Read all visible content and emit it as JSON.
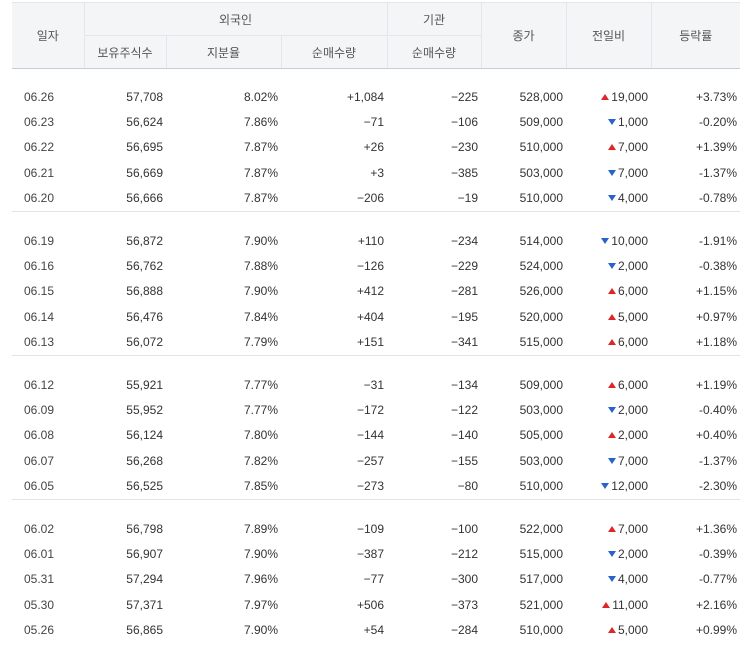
{
  "header": {
    "date": "일자",
    "foreign": "외국인",
    "institution": "기관",
    "holdings": "보유주식수",
    "share_ratio": "지분율",
    "net_foreign": "순매수량",
    "net_inst": "순매수량",
    "close": "종가",
    "change": "전일비",
    "rate": "등락률"
  },
  "colors": {
    "up": "#e0252a",
    "down": "#2a62c9"
  },
  "groups": [
    [
      {
        "date": "06.26",
        "hold": "57,708",
        "ratio": "8.02%",
        "foreign": "+1,084",
        "fdir": "up",
        "inst": "−225",
        "idir": "down",
        "close": "528,000",
        "cdir": "up",
        "change": "19,000",
        "chdir": "up",
        "rate": "+3.73%",
        "rdir": "up"
      },
      {
        "date": "06.23",
        "hold": "56,624",
        "ratio": "7.86%",
        "foreign": "−71",
        "fdir": "down",
        "inst": "−106",
        "idir": "down",
        "close": "509,000",
        "cdir": "down",
        "change": "1,000",
        "chdir": "down",
        "rate": "-0.20%",
        "rdir": "down"
      },
      {
        "date": "06.22",
        "hold": "56,695",
        "ratio": "7.87%",
        "foreign": "+26",
        "fdir": "up",
        "inst": "−230",
        "idir": "down",
        "close": "510,000",
        "cdir": "up",
        "change": "7,000",
        "chdir": "up",
        "rate": "+1.39%",
        "rdir": "up"
      },
      {
        "date": "06.21",
        "hold": "56,669",
        "ratio": "7.87%",
        "foreign": "+3",
        "fdir": "up",
        "inst": "−385",
        "idir": "down",
        "close": "503,000",
        "cdir": "down",
        "change": "7,000",
        "chdir": "down",
        "rate": "-1.37%",
        "rdir": "down"
      },
      {
        "date": "06.20",
        "hold": "56,666",
        "ratio": "7.87%",
        "foreign": "−206",
        "fdir": "down",
        "inst": "−19",
        "idir": "down",
        "close": "510,000",
        "cdir": "down",
        "change": "4,000",
        "chdir": "down",
        "rate": "-0.78%",
        "rdir": "down"
      }
    ],
    [
      {
        "date": "06.19",
        "hold": "56,872",
        "ratio": "7.90%",
        "foreign": "+110",
        "fdir": "up",
        "inst": "−234",
        "idir": "down",
        "close": "514,000",
        "cdir": "down",
        "change": "10,000",
        "chdir": "down",
        "rate": "-1.91%",
        "rdir": "down"
      },
      {
        "date": "06.16",
        "hold": "56,762",
        "ratio": "7.88%",
        "foreign": "−126",
        "fdir": "down",
        "inst": "−229",
        "idir": "down",
        "close": "524,000",
        "cdir": "down",
        "change": "2,000",
        "chdir": "down",
        "rate": "-0.38%",
        "rdir": "down"
      },
      {
        "date": "06.15",
        "hold": "56,888",
        "ratio": "7.90%",
        "foreign": "+412",
        "fdir": "up",
        "inst": "−281",
        "idir": "down",
        "close": "526,000",
        "cdir": "up",
        "change": "6,000",
        "chdir": "up",
        "rate": "+1.15%",
        "rdir": "up"
      },
      {
        "date": "06.14",
        "hold": "56,476",
        "ratio": "7.84%",
        "foreign": "+404",
        "fdir": "up",
        "inst": "−195",
        "idir": "down",
        "close": "520,000",
        "cdir": "up",
        "change": "5,000",
        "chdir": "up",
        "rate": "+0.97%",
        "rdir": "up"
      },
      {
        "date": "06.13",
        "hold": "56,072",
        "ratio": "7.79%",
        "foreign": "+151",
        "fdir": "up",
        "inst": "−341",
        "idir": "down",
        "close": "515,000",
        "cdir": "up",
        "change": "6,000",
        "chdir": "up",
        "rate": "+1.18%",
        "rdir": "up"
      }
    ],
    [
      {
        "date": "06.12",
        "hold": "55,921",
        "ratio": "7.77%",
        "foreign": "−31",
        "fdir": "down",
        "inst": "−134",
        "idir": "down",
        "close": "509,000",
        "cdir": "up",
        "change": "6,000",
        "chdir": "up",
        "rate": "+1.19%",
        "rdir": "up"
      },
      {
        "date": "06.09",
        "hold": "55,952",
        "ratio": "7.77%",
        "foreign": "−172",
        "fdir": "down",
        "inst": "−122",
        "idir": "down",
        "close": "503,000",
        "cdir": "down",
        "change": "2,000",
        "chdir": "down",
        "rate": "-0.40%",
        "rdir": "down"
      },
      {
        "date": "06.08",
        "hold": "56,124",
        "ratio": "7.80%",
        "foreign": "−144",
        "fdir": "down",
        "inst": "−140",
        "idir": "down",
        "close": "505,000",
        "cdir": "up",
        "change": "2,000",
        "chdir": "up",
        "rate": "+0.40%",
        "rdir": "up"
      },
      {
        "date": "06.07",
        "hold": "56,268",
        "ratio": "7.82%",
        "foreign": "−257",
        "fdir": "down",
        "inst": "−155",
        "idir": "down",
        "close": "503,000",
        "cdir": "down",
        "change": "7,000",
        "chdir": "down",
        "rate": "-1.37%",
        "rdir": "down"
      },
      {
        "date": "06.05",
        "hold": "56,525",
        "ratio": "7.85%",
        "foreign": "−273",
        "fdir": "down",
        "inst": "−80",
        "idir": "down",
        "close": "510,000",
        "cdir": "down",
        "change": "12,000",
        "chdir": "down",
        "rate": "-2.30%",
        "rdir": "down"
      }
    ],
    [
      {
        "date": "06.02",
        "hold": "56,798",
        "ratio": "7.89%",
        "foreign": "−109",
        "fdir": "down",
        "inst": "−100",
        "idir": "down",
        "close": "522,000",
        "cdir": "up",
        "change": "7,000",
        "chdir": "up",
        "rate": "+1.36%",
        "rdir": "up"
      },
      {
        "date": "06.01",
        "hold": "56,907",
        "ratio": "7.90%",
        "foreign": "−387",
        "fdir": "down",
        "inst": "−212",
        "idir": "down",
        "close": "515,000",
        "cdir": "down",
        "change": "2,000",
        "chdir": "down",
        "rate": "-0.39%",
        "rdir": "down"
      },
      {
        "date": "05.31",
        "hold": "57,294",
        "ratio": "7.96%",
        "foreign": "−77",
        "fdir": "down",
        "inst": "−300",
        "idir": "down",
        "close": "517,000",
        "cdir": "down",
        "change": "4,000",
        "chdir": "down",
        "rate": "-0.77%",
        "rdir": "down"
      },
      {
        "date": "05.30",
        "hold": "57,371",
        "ratio": "7.97%",
        "foreign": "+506",
        "fdir": "up",
        "inst": "−373",
        "idir": "down",
        "close": "521,000",
        "cdir": "up",
        "change": "11,000",
        "chdir": "up",
        "rate": "+2.16%",
        "rdir": "up"
      },
      {
        "date": "05.26",
        "hold": "56,865",
        "ratio": "7.90%",
        "foreign": "+54",
        "fdir": "up",
        "inst": "−284",
        "idir": "down",
        "close": "510,000",
        "cdir": "up",
        "change": "5,000",
        "chdir": "up",
        "rate": "+0.99%",
        "rdir": "up"
      }
    ]
  ]
}
